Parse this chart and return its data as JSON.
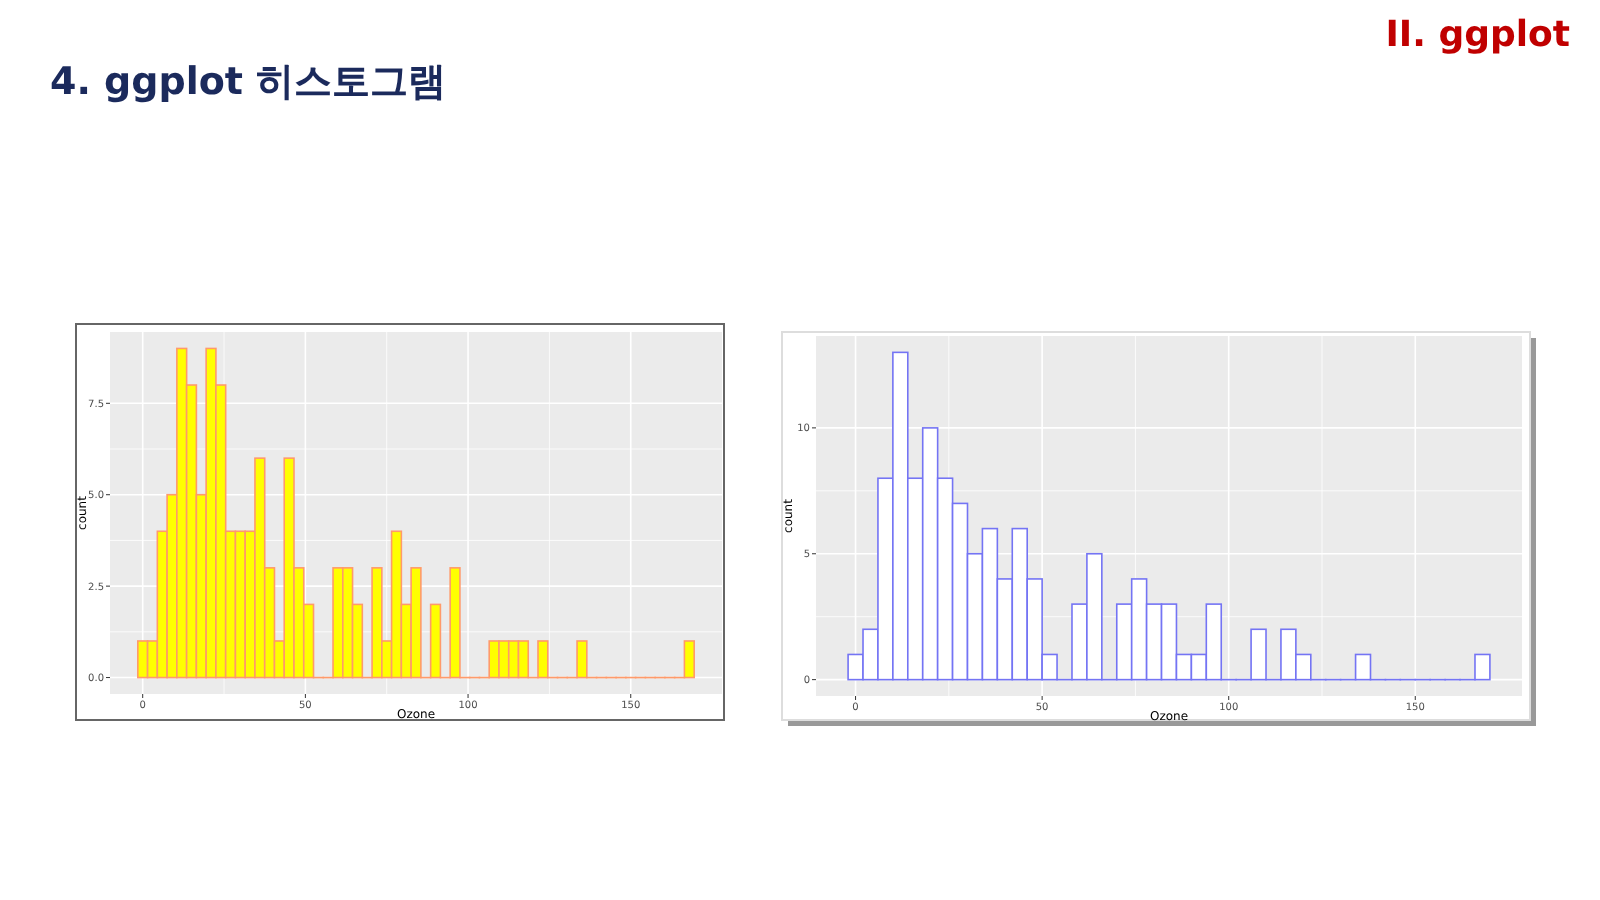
{
  "chart_data": [
    {
      "type": "histogram",
      "title": "4. ggplot 히스토그램",
      "annotations": [
        "II. ggplot"
      ],
      "xlabel": "Ozone",
      "ylabel": "count",
      "bins": [
        -1.5,
        1.5,
        4.5,
        7.5,
        10.5,
        13.5,
        16.5,
        19.5,
        22.5,
        25.5,
        28.5,
        31.5,
        34.5,
        37.5,
        40.5,
        43.5,
        46.5,
        49.5,
        52.5,
        55.5,
        58.5,
        61.5,
        64.5,
        67.5,
        70.5,
        73.5,
        76.5,
        79.5,
        82.5,
        85.5,
        88.5,
        91.5,
        94.5,
        97.5,
        100.5,
        103.5,
        106.5,
        109.5,
        112.5,
        115.5,
        118.5,
        121.5,
        124.5,
        127.5,
        130.5,
        133.5,
        136.5,
        139.5,
        142.5,
        145.5,
        148.5,
        151.5,
        154.5,
        157.5,
        160.5,
        163.5,
        166.5,
        169.5
      ],
      "series": [
        {
          "color": "#ffff00",
          "values": [
            1,
            1,
            4,
            5,
            9,
            8,
            5,
            9,
            8,
            4,
            4,
            4,
            6,
            3,
            1,
            6,
            3,
            2,
            0,
            0,
            3,
            3,
            2,
            0,
            3,
            1,
            4,
            2,
            3,
            0,
            2,
            0,
            3,
            0,
            0,
            0,
            1,
            1,
            1,
            1,
            0,
            1,
            0,
            0,
            0,
            1,
            0,
            0,
            0,
            0,
            0,
            0,
            0,
            0,
            0,
            0,
            1
          ]
        }
      ],
      "xlim": [
        -10.05,
        178.05
      ],
      "ylim": [
        -0.45,
        9.45
      ],
      "xticks": [
        0,
        50,
        100,
        150
      ],
      "yticks": [
        {
          "value": 0,
          "label": "0.0"
        },
        {
          "value": 2.5,
          "label": "2.5"
        },
        {
          "value": 5,
          "label": "5.0"
        },
        {
          "value": 7.5,
          "label": "7.5"
        }
      ],
      "grid": true
    },
    {
      "type": "histogram",
      "xlabel": "Ozone",
      "ylabel": "count",
      "bins": [
        -2,
        2,
        6,
        10,
        14,
        18,
        22,
        26,
        30,
        34,
        38,
        42,
        46,
        50,
        54,
        58,
        62,
        66,
        70,
        74,
        78,
        82,
        86,
        90,
        94,
        98,
        102,
        106,
        110,
        114,
        118,
        122,
        126,
        130,
        134,
        138,
        142,
        146,
        150,
        154,
        158,
        162,
        166,
        170
      ],
      "series": [
        {
          "color": "#ffffff",
          "values": [
            1,
            2,
            8,
            13,
            8,
            10,
            8,
            7,
            5,
            6,
            4,
            6,
            4,
            1,
            0,
            3,
            5,
            0,
            3,
            4,
            3,
            3,
            1,
            1,
            3,
            0,
            0,
            2,
            0,
            2,
            1,
            0,
            0,
            0,
            1,
            0,
            0,
            0,
            0,
            0,
            0,
            0,
            1
          ]
        }
      ],
      "xlim": [
        -10.6,
        178.6
      ],
      "ylim": [
        -0.65,
        13.65
      ],
      "xticks": [
        0,
        50,
        100,
        150
      ],
      "yticks": [
        0,
        5,
        10
      ],
      "grid": true
    }
  ]
}
